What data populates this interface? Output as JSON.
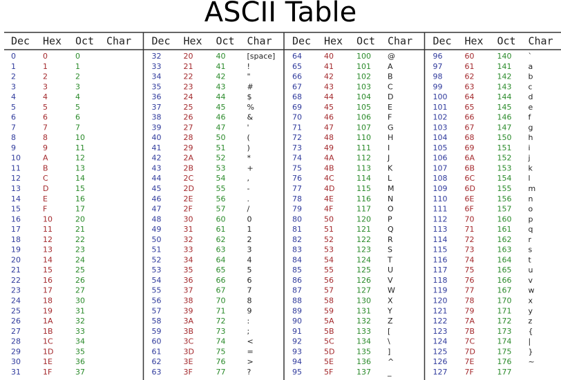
{
  "title": "ASCII Table",
  "table": {
    "groups": [
      {
        "header": [
          "Dec",
          "Hex",
          "Oct",
          "Char"
        ],
        "rows": [
          [
            "0",
            "0",
            "0"
          ],
          [
            "1",
            "1",
            "1"
          ],
          [
            "2",
            "2",
            "2"
          ],
          [
            "3",
            "3",
            "3"
          ],
          [
            "4",
            "4",
            "4"
          ],
          [
            "5",
            "5",
            "5"
          ],
          [
            "6",
            "6",
            "6"
          ],
          [
            "7",
            "7",
            "7"
          ],
          [
            "8",
            "8",
            "10"
          ],
          [
            "9",
            "9",
            "11"
          ],
          [
            "10",
            "A",
            "12"
          ],
          [
            "11",
            "B",
            "13"
          ],
          [
            "12",
            "C",
            "14"
          ],
          [
            "13",
            "D",
            "15"
          ],
          [
            "14",
            "E",
            "16"
          ],
          [
            "15",
            "F",
            "17"
          ],
          [
            "16",
            "10",
            "20"
          ],
          [
            "17",
            "11",
            "21"
          ],
          [
            "18",
            "12",
            "22"
          ],
          [
            "19",
            "13",
            "23"
          ],
          [
            "20",
            "14",
            "24"
          ],
          [
            "21",
            "15",
            "25"
          ],
          [
            "22",
            "16",
            "26"
          ],
          [
            "23",
            "17",
            "27"
          ],
          [
            "24",
            "18",
            "30"
          ],
          [
            "25",
            "19",
            "31"
          ],
          [
            "26",
            "1A",
            "32"
          ],
          [
            "27",
            "1B",
            "33"
          ],
          [
            "28",
            "1C",
            "34"
          ],
          [
            "29",
            "1D",
            "35"
          ],
          [
            "30",
            "1E",
            "36"
          ],
          [
            "31",
            "1F",
            "37"
          ]
        ]
      },
      {
        "header": [
          "Dec",
          "Hex",
          "Oct",
          "Char"
        ],
        "rows": [
          [
            "32",
            "20",
            "40",
            "[space]"
          ],
          [
            "33",
            "21",
            "41",
            "!"
          ],
          [
            "34",
            "22",
            "42",
            "\""
          ],
          [
            "35",
            "23",
            "43",
            "#"
          ],
          [
            "36",
            "24",
            "44",
            "$"
          ],
          [
            "37",
            "25",
            "45",
            "%"
          ],
          [
            "38",
            "26",
            "46",
            "&"
          ],
          [
            "39",
            "27",
            "47",
            "'"
          ],
          [
            "40",
            "28",
            "50",
            "("
          ],
          [
            "41",
            "29",
            "51",
            ")"
          ],
          [
            "42",
            "2A",
            "52",
            "*"
          ],
          [
            "43",
            "2B",
            "53",
            "+"
          ],
          [
            "44",
            "2C",
            "54",
            ","
          ],
          [
            "45",
            "2D",
            "55",
            "-"
          ],
          [
            "46",
            "2E",
            "56",
            "."
          ],
          [
            "47",
            "2F",
            "57",
            "/"
          ],
          [
            "48",
            "30",
            "60",
            "0"
          ],
          [
            "49",
            "31",
            "61",
            "1"
          ],
          [
            "50",
            "32",
            "62",
            "2"
          ],
          [
            "51",
            "33",
            "63",
            "3"
          ],
          [
            "52",
            "34",
            "64",
            "4"
          ],
          [
            "53",
            "35",
            "65",
            "5"
          ],
          [
            "54",
            "36",
            "66",
            "6"
          ],
          [
            "55",
            "37",
            "67",
            "7"
          ],
          [
            "56",
            "38",
            "70",
            "8"
          ],
          [
            "57",
            "39",
            "71",
            "9"
          ],
          [
            "58",
            "3A",
            "72",
            ":"
          ],
          [
            "59",
            "3B",
            "73",
            ";"
          ],
          [
            "60",
            "3C",
            "74",
            "<"
          ],
          [
            "61",
            "3D",
            "75",
            "="
          ],
          [
            "62",
            "3E",
            "76",
            ">"
          ],
          [
            "63",
            "3F",
            "77",
            "?"
          ]
        ]
      },
      {
        "header": [
          "Dec",
          "Hex",
          "Oct",
          "Char"
        ],
        "rows": [
          [
            "64",
            "40",
            "100",
            "@"
          ],
          [
            "65",
            "41",
            "101",
            "A"
          ],
          [
            "66",
            "42",
            "102",
            "B"
          ],
          [
            "67",
            "43",
            "103",
            "C"
          ],
          [
            "68",
            "44",
            "104",
            "D"
          ],
          [
            "69",
            "45",
            "105",
            "E"
          ],
          [
            "70",
            "46",
            "106",
            "F"
          ],
          [
            "71",
            "47",
            "107",
            "G"
          ],
          [
            "72",
            "48",
            "110",
            "H"
          ],
          [
            "73",
            "49",
            "111",
            "I"
          ],
          [
            "74",
            "4A",
            "112",
            "J"
          ],
          [
            "75",
            "4B",
            "113",
            "K"
          ],
          [
            "76",
            "4C",
            "114",
            "L"
          ],
          [
            "77",
            "4D",
            "115",
            "M"
          ],
          [
            "78",
            "4E",
            "116",
            "N"
          ],
          [
            "79",
            "4F",
            "117",
            "O"
          ],
          [
            "80",
            "50",
            "120",
            "P"
          ],
          [
            "81",
            "51",
            "121",
            "Q"
          ],
          [
            "82",
            "52",
            "122",
            "R"
          ],
          [
            "83",
            "53",
            "123",
            "S"
          ],
          [
            "84",
            "54",
            "124",
            "T"
          ],
          [
            "85",
            "55",
            "125",
            "U"
          ],
          [
            "86",
            "56",
            "126",
            "V"
          ],
          [
            "87",
            "57",
            "127",
            "W"
          ],
          [
            "88",
            "58",
            "130",
            "X"
          ],
          [
            "89",
            "59",
            "131",
            "Y"
          ],
          [
            "90",
            "5A",
            "132",
            "Z"
          ],
          [
            "91",
            "5B",
            "133",
            "["
          ],
          [
            "92",
            "5C",
            "134",
            "\\"
          ],
          [
            "93",
            "5D",
            "135",
            "]"
          ],
          [
            "94",
            "5E",
            "136",
            "^"
          ],
          [
            "95",
            "5F",
            "137",
            "_"
          ]
        ]
      },
      {
        "header": [
          "Dec",
          "Hex",
          "Oct",
          "Char"
        ],
        "rows": [
          [
            "96",
            "60",
            "140",
            "`"
          ],
          [
            "97",
            "61",
            "141",
            "a"
          ],
          [
            "98",
            "62",
            "142",
            "b"
          ],
          [
            "99",
            "63",
            "143",
            "c"
          ],
          [
            "100",
            "64",
            "144",
            "d"
          ],
          [
            "101",
            "65",
            "145",
            "e"
          ],
          [
            "102",
            "66",
            "146",
            "f"
          ],
          [
            "103",
            "67",
            "147",
            "g"
          ],
          [
            "104",
            "68",
            "150",
            "h"
          ],
          [
            "105",
            "69",
            "151",
            "i"
          ],
          [
            "106",
            "6A",
            "152",
            "j"
          ],
          [
            "107",
            "6B",
            "153",
            "k"
          ],
          [
            "108",
            "6C",
            "154",
            "l"
          ],
          [
            "109",
            "6D",
            "155",
            "m"
          ],
          [
            "110",
            "6E",
            "156",
            "n"
          ],
          [
            "111",
            "6F",
            "157",
            "o"
          ],
          [
            "112",
            "70",
            "160",
            "p"
          ],
          [
            "113",
            "71",
            "161",
            "q"
          ],
          [
            "114",
            "72",
            "162",
            "r"
          ],
          [
            "115",
            "73",
            "163",
            "s"
          ],
          [
            "116",
            "74",
            "164",
            "t"
          ],
          [
            "117",
            "75",
            "165",
            "u"
          ],
          [
            "118",
            "76",
            "166",
            "v"
          ],
          [
            "119",
            "77",
            "167",
            "w"
          ],
          [
            "120",
            "78",
            "170",
            "x"
          ],
          [
            "121",
            "79",
            "171",
            "y"
          ],
          [
            "122",
            "7A",
            "172",
            "z"
          ],
          [
            "123",
            "7B",
            "173",
            "{"
          ],
          [
            "124",
            "7C",
            "174",
            "|"
          ],
          [
            "125",
            "7D",
            "175",
            "}"
          ],
          [
            "126",
            "7E",
            "176",
            "~"
          ],
          [
            "127",
            "7F",
            "177"
          ]
        ]
      }
    ]
  }
}
